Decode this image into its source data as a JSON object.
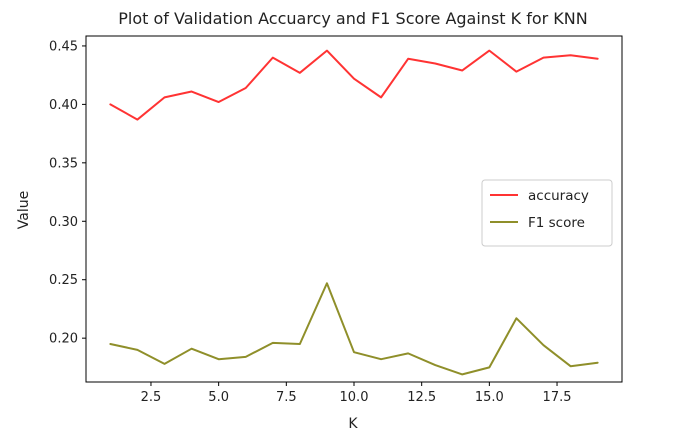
{
  "chart_data": {
    "type": "line",
    "title": "Plot of Validation Accuarcy and F1 Score Against K for KNN",
    "xlabel": "K",
    "ylabel": "Value",
    "xlim": [
      0.1,
      19.9
    ],
    "ylim": [
      0.1625,
      0.4585
    ],
    "xticks": [
      2.5,
      5.0,
      7.5,
      10.0,
      12.5,
      15.0,
      17.5
    ],
    "xtick_labels": [
      "2.5",
      "5.0",
      "7.5",
      "10.0",
      "12.5",
      "15.0",
      "17.5"
    ],
    "yticks": [
      0.2,
      0.25,
      0.3,
      0.35,
      0.4,
      0.45
    ],
    "ytick_labels": [
      "0.20",
      "0.25",
      "0.30",
      "0.35",
      "0.40",
      "0.45"
    ],
    "grid": false,
    "legend_position": "center-right",
    "x": [
      1,
      2,
      3,
      4,
      5,
      6,
      7,
      8,
      9,
      10,
      11,
      12,
      13,
      14,
      15,
      16,
      17,
      18,
      19
    ],
    "series": [
      {
        "name": "accuracy",
        "color": "#ff3333",
        "values": [
          0.4,
          0.387,
          0.406,
          0.411,
          0.402,
          0.414,
          0.44,
          0.427,
          0.446,
          0.422,
          0.406,
          0.439,
          0.435,
          0.429,
          0.446,
          0.428,
          0.44,
          0.442,
          0.439
        ]
      },
      {
        "name": "F1 score",
        "color": "#8f8f2a",
        "values": [
          0.195,
          0.19,
          0.178,
          0.191,
          0.182,
          0.184,
          0.196,
          0.195,
          0.247,
          0.188,
          0.182,
          0.187,
          0.177,
          0.169,
          0.175,
          0.217,
          0.194,
          0.176,
          0.179
        ]
      }
    ]
  }
}
